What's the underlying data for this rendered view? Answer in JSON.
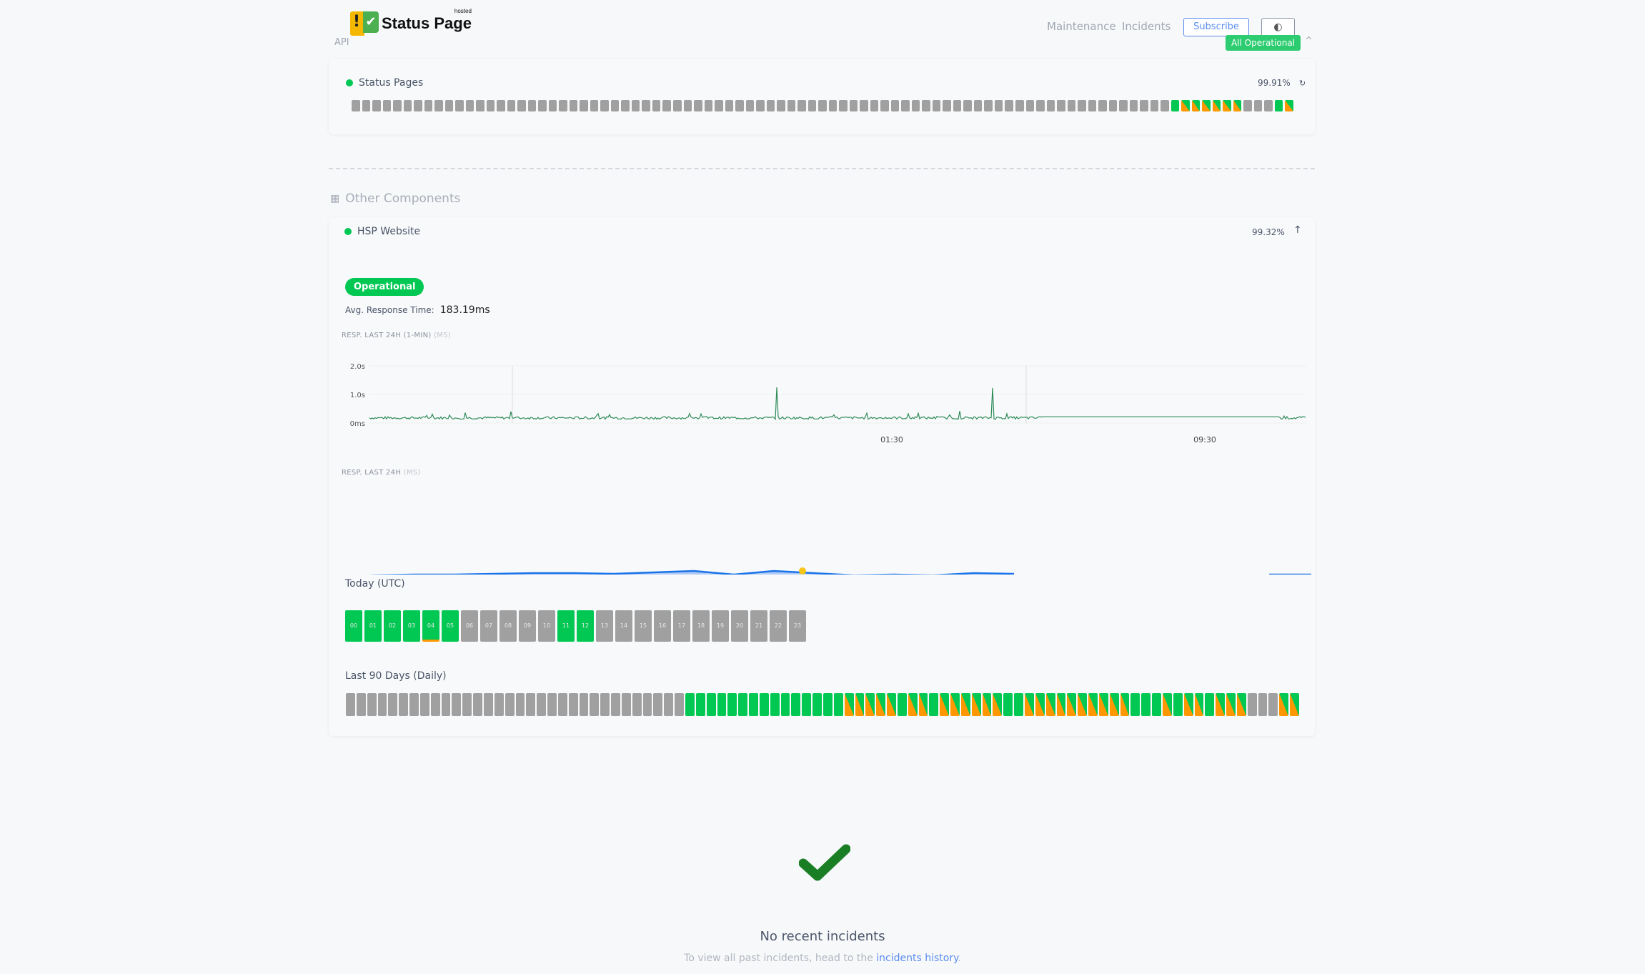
{
  "header": {
    "logo_text": "Status Page",
    "logo_sup": "hosted",
    "nav": [
      "Maintenance",
      "Incidents"
    ],
    "subscribe": "Subscribe",
    "theme_icon": "contrast-icon",
    "overall_status": "All Operational",
    "group_label": "API"
  },
  "status_pages": {
    "name": "Status Pages",
    "uptime": "99.91%",
    "days": "gggggggggggggggggggggggggggggggggggggggggggggggggggggggggggggggggggggggggggggggGOOOOOOgggGO"
  },
  "other_components": {
    "title": "Other Components"
  },
  "hsp": {
    "name": "HSP Website",
    "uptime": "99.32%",
    "status": "Operational",
    "avg_label": "Avg. Response Time:",
    "avg_value": "183.19ms",
    "chart1_label": "RESP. LAST 24H (1-MIN)",
    "chart1_unit": "(MS)",
    "chart2_label": "RESP. LAST 24H",
    "chart2_unit": "(MS)",
    "today_label": "Today (UTC)",
    "hours": [
      "00",
      "01",
      "02",
      "03",
      "04",
      "05",
      "06",
      "07",
      "08",
      "09",
      "10",
      "11",
      "12",
      "13",
      "14",
      "15",
      "16",
      "17",
      "18",
      "19",
      "20",
      "21",
      "22",
      "23"
    ],
    "hour_status": "GGGGGGgggggGGggggggggggg",
    "days_label": "Last 90 Days (Daily)",
    "days": "ggggggggggggggggggggggggggggggggGGGGGGGGGGGGGGGOOOOOGOOGOOOOOOGGOOOOOOOOOOGGGOGOOGOOOgggOO"
  },
  "chart_data": {
    "type": "line",
    "ylabels": [
      "2.0s",
      "1.0s",
      "0ms"
    ],
    "ylim": [
      0,
      2000
    ],
    "xlabels": [
      "01:30",
      "09:30"
    ],
    "baseline_ms": 180,
    "spikes_ms": [
      1250,
      1230
    ]
  },
  "colors": {
    "up": "#00c853",
    "partial": "#ff9800",
    "nodata": "#a0a0a0",
    "line": "#2e8b57",
    "area": "#1a73e8"
  },
  "incidents": {
    "title": "No recent incidents",
    "text": "To view all past incidents, head to the",
    "link": "incidents history",
    "end": "."
  }
}
